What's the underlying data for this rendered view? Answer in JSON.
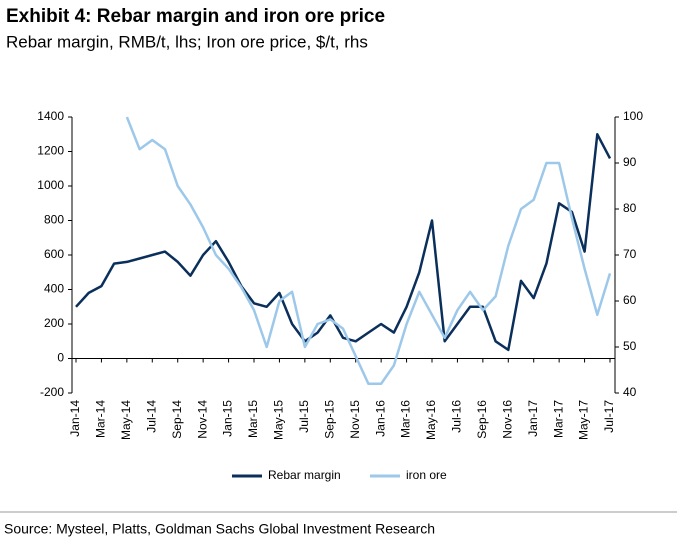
{
  "chart_data": {
    "type": "line",
    "title": "Exhibit 4: Rebar margin and iron ore price",
    "subtitle": "Rebar margin, RMB/t, lhs; Iron ore price, $/t, rhs",
    "source": "Source: Mysteel, Platts, Goldman Sachs Global Investment Research",
    "categories": [
      "Jan-14",
      null,
      "Mar-14",
      null,
      "May-14",
      null,
      "Jul-14",
      null,
      "Sep-14",
      null,
      "Nov-14",
      null,
      "Jan-15",
      null,
      "Mar-15",
      null,
      "May-15",
      null,
      "Jul-15",
      null,
      "Sep-15",
      null,
      "Nov-15",
      null,
      "Jan-16",
      null,
      "Mar-16",
      null,
      "May-16",
      null,
      "Jul-16",
      null,
      "Sep-16",
      null,
      "Nov-16",
      null,
      "Jan-17",
      null,
      "Mar-17",
      null,
      "May-17",
      null,
      "Jul-17"
    ],
    "series": [
      {
        "name": "Rebar margin",
        "color": "#0b2f5b",
        "axis": "y",
        "values": [
          300,
          380,
          420,
          550,
          560,
          580,
          600,
          620,
          560,
          480,
          600,
          680,
          560,
          420,
          320,
          300,
          380,
          200,
          100,
          150,
          250,
          120,
          100,
          150,
          200,
          150,
          300,
          500,
          800,
          100,
          200,
          300,
          300,
          100,
          50,
          450,
          350,
          550,
          900,
          850,
          620,
          1300,
          1160
        ]
      },
      {
        "name": "iron ore",
        "color": "#9dc8ea",
        "axis": "y2",
        "values": [
          null,
          null,
          null,
          null,
          100,
          93,
          95,
          93,
          85,
          81,
          76,
          70,
          67,
          63,
          58,
          50,
          60,
          62,
          50,
          55,
          56,
          54,
          48,
          42,
          42,
          46,
          55,
          62,
          57,
          52,
          58,
          62,
          58,
          61,
          72,
          80,
          82,
          90,
          90,
          78,
          67,
          57,
          66
        ]
      }
    ],
    "ylim": [
      -200,
      1400
    ],
    "yticks": [
      -200,
      0,
      200,
      400,
      600,
      800,
      1000,
      1200,
      1400
    ],
    "y2lim": [
      40,
      100
    ],
    "y2ticks": [
      40,
      50,
      60,
      70,
      80,
      90,
      100
    ],
    "legend": "bottom"
  }
}
